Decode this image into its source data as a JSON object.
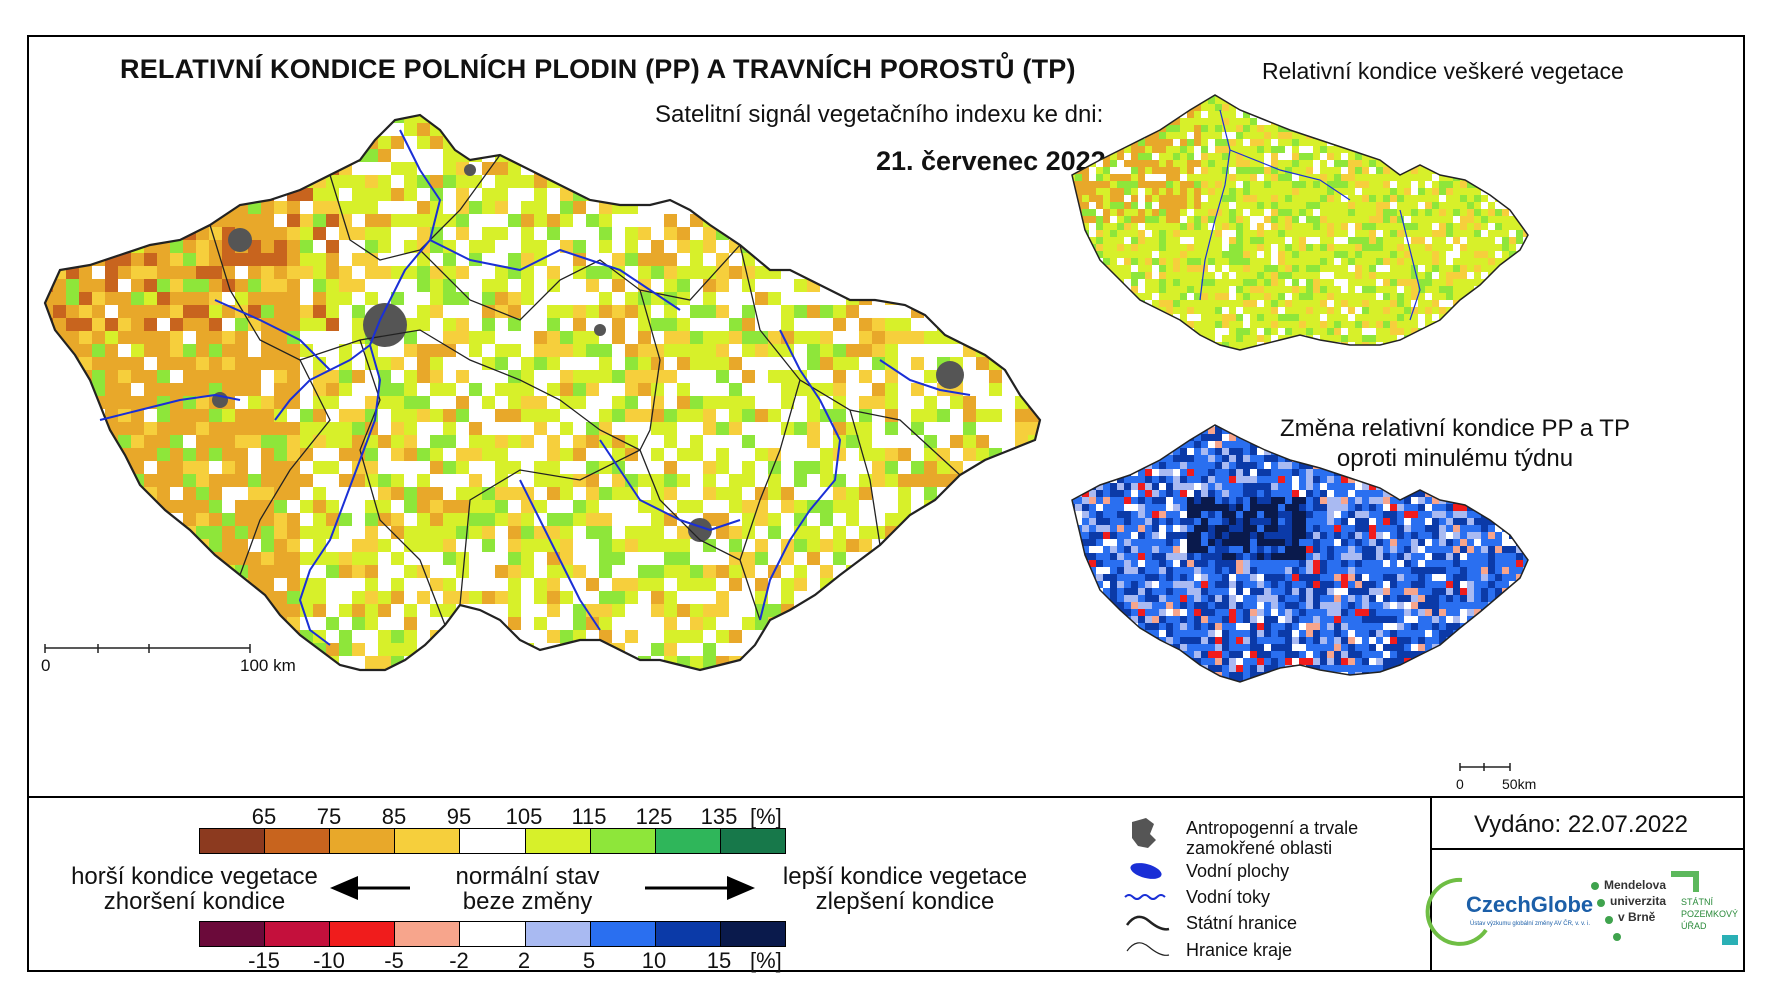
{
  "titles": {
    "main": "RELATIVNÍ KONDICE POLNÍCH PLODIN (PP) A TRAVNÍCH POROSTŮ (TP)",
    "subtitle": "Satelitní signál vegetačního indexu ke dni:",
    "date": "21. červenec 2022",
    "vegetation_inset": "Relativní kondice veškeré vegetace",
    "change_inset_line1": "Změna relativní kondice PP a TP",
    "change_inset_line2": "oproti minulému týdnu",
    "issued": "Vydáno: 22.07.2022"
  },
  "scalebars": {
    "main": {
      "start": "0",
      "end": "100 km"
    },
    "inset": {
      "start": "0",
      "end": "50km"
    }
  },
  "condition_scale": {
    "unit": "[%]",
    "ticks": [
      "65",
      "75",
      "85",
      "95",
      "105",
      "115",
      "125",
      "135"
    ],
    "colors": [
      "#8c3a1f",
      "#c8641e",
      "#e8a82a",
      "#f6cf3c",
      "#ffffff",
      "#d7f02a",
      "#8ee63a",
      "#2fb65a",
      "#17784a"
    ]
  },
  "change_scale": {
    "unit": "[%]",
    "ticks": [
      "-15",
      "-10",
      "-5",
      "-2",
      "2",
      "5",
      "10",
      "15"
    ],
    "colors": [
      "#6b0a3a",
      "#c4103c",
      "#f01c1c",
      "#f7a58c",
      "#ffffff",
      "#a9baf2",
      "#2a6ff0",
      "#0b3aa8",
      "#0a1a4c"
    ]
  },
  "arrows": {
    "left_line1": "horší kondice vegetace",
    "left_line2": "zhoršení kondice",
    "center_line1": "normální stav",
    "center_line2": "beze změny",
    "right_line1": "lepší kondice vegetace",
    "right_line2": "zlepšení kondice"
  },
  "map_legend": {
    "urban_line1": "Antropogenní a trvale",
    "urban_line2": "zamokřené oblasti",
    "water_bodies": "Vodní plochy",
    "rivers": "Vodní toky",
    "state_border": "Státní hranice",
    "region_border": "Hranice kraje"
  },
  "logos": {
    "czechglobe": "CzechGlobe",
    "czechglobe_sub": "Ústav výzkumu globální změny AV ČR, v. v. i.",
    "mendel_line1": "Mendelova",
    "mendel_line2": "univerzita",
    "mendel_line3": "v Brně",
    "spu_line1": "STÁTNÍ",
    "spu_line2": "POZEMKOVÝ",
    "spu_line3": "ÚŘAD"
  },
  "colors": {
    "river": "#1a2fd6",
    "urban": "#555555",
    "border": "#222222"
  }
}
